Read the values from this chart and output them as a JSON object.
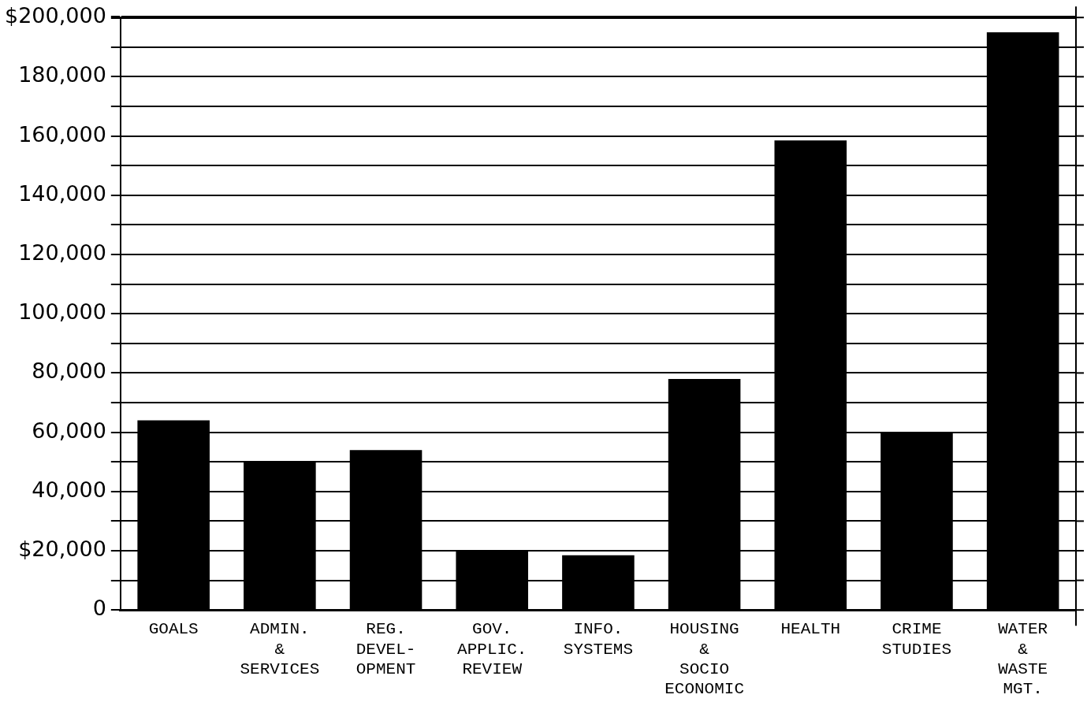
{
  "chart_data": {
    "type": "bar",
    "categories": [
      "GOALS",
      "ADMIN.\n&\nSERVICES",
      "REG.\nDEVEL-\nOPMENT",
      "GOV.\nAPPLIC.\nREVIEW",
      "INFO.\nSYSTEMS",
      "HOUSING\n&\nSOCIO\nECONOMIC",
      "HEALTH",
      "CRIME\nSTUDIES",
      "WATER\n&\nWASTE\nMGT."
    ],
    "values": [
      64000,
      50000,
      54000,
      20000,
      18500,
      78000,
      158500,
      60000,
      195000
    ],
    "color": "#000000",
    "ylim": [
      0,
      200000
    ],
    "yticks": [
      {
        "value": 0,
        "label": "0"
      },
      {
        "value": 10000,
        "label": null
      },
      {
        "value": 20000,
        "label": "$20,000"
      },
      {
        "value": 30000,
        "label": null
      },
      {
        "value": 40000,
        "label": "40,000"
      },
      {
        "value": 50000,
        "label": null
      },
      {
        "value": 60000,
        "label": "60,000"
      },
      {
        "value": 70000,
        "label": null
      },
      {
        "value": 80000,
        "label": "80,000"
      },
      {
        "value": 90000,
        "label": null
      },
      {
        "value": 100000,
        "label": "100,000"
      },
      {
        "value": 110000,
        "label": null
      },
      {
        "value": 120000,
        "label": "120,000"
      },
      {
        "value": 130000,
        "label": null
      },
      {
        "value": 140000,
        "label": "140,000"
      },
      {
        "value": 150000,
        "label": null
      },
      {
        "value": 160000,
        "label": "160,000"
      },
      {
        "value": 170000,
        "label": null
      },
      {
        "value": 180000,
        "label": "180,000"
      },
      {
        "value": 190000,
        "label": null
      },
      {
        "value": 200000,
        "label": "$200,000"
      }
    ],
    "grid": true
  }
}
